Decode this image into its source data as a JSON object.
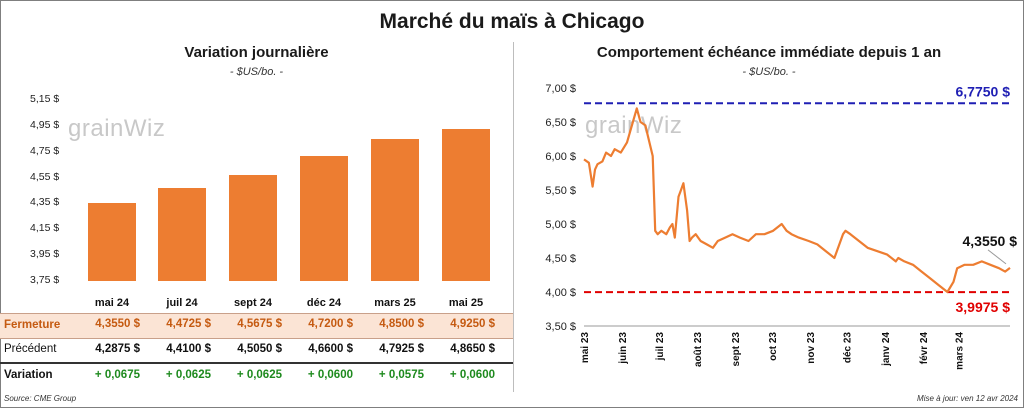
{
  "main_title": "Marché du maïs à Chicago",
  "left": {
    "title": "Variation  journalière",
    "unit": "- $US/bo. -",
    "watermark": "grainWiz",
    "y_ticks": [
      "5,15 $",
      "4,95 $",
      "4,75 $",
      "4,55 $",
      "4,35 $",
      "4,15 $",
      "3,95 $",
      "3,75 $"
    ],
    "table": {
      "rows": [
        {
          "label": "Fermeture",
          "values": [
            "4,3550  $",
            "4,4725  $",
            "4,5675  $",
            "4,7200  $",
            "4,8500  $",
            "4,9250  $"
          ]
        },
        {
          "label": "Précédent",
          "values": [
            "4,2875  $",
            "4,4100  $",
            "4,5050  $",
            "4,6600  $",
            "4,7925  $",
            "4,8650  $"
          ]
        },
        {
          "label": "Variation",
          "values": [
            "+ 0,0675",
            "+ 0,0625",
            "+ 0,0625",
            "+ 0,0600",
            "+ 0,0575",
            "+ 0,0600"
          ]
        }
      ]
    },
    "colors": {
      "bar": "#ed7d31",
      "close_row_bg": "#fbe4d5",
      "close_row_text": "#c55a11",
      "positive": "#1e8a1e"
    }
  },
  "right": {
    "title": "Comportement  échéance immédiate depuis 1 an",
    "unit": "- $US/bo. -",
    "watermark": "grainWiz",
    "y_ticks": [
      "7,00 $",
      "6,50 $",
      "6,00 $",
      "5,50 $",
      "5,00 $",
      "4,50 $",
      "4,00 $",
      "3,50 $"
    ],
    "x_ticks": [
      "mai 23",
      "juin 23",
      "juil 23",
      "août 23",
      "sept 23",
      "oct 23",
      "nov 23",
      "déc 23",
      "janv 24",
      "févr 24",
      "mars 24"
    ],
    "high_label": "6,7750 $",
    "low_label": "3,9975 $",
    "last_label": "4,3550 $",
    "colors": {
      "line": "#ed7d31",
      "high": "#1f1fb4",
      "low": "#e00000"
    }
  },
  "source": "Source: CME Group",
  "updated": "Mise à jour: ven 12 avr 2024",
  "chart_data": [
    {
      "type": "bar",
      "title": "Variation  journalière",
      "ylabel": "$US/bo.",
      "categories": [
        "mai 24",
        "juil 24",
        "sept 24",
        "déc 24",
        "mars 25",
        "mai 25"
      ],
      "values": [
        4.355,
        4.4725,
        4.5675,
        4.72,
        4.85,
        4.925
      ],
      "ylim": [
        3.75,
        5.15
      ],
      "grid": false
    },
    {
      "type": "line",
      "title": "Comportement  échéance immédiate depuis 1 an",
      "ylabel": "$US/bo.",
      "ylim": [
        3.5,
        7.0
      ],
      "reference_lines": [
        {
          "label": "6,7750 $",
          "value": 6.775
        },
        {
          "label": "3,9975 $",
          "value": 3.9975
        }
      ],
      "series": [
        {
          "x": [
            "2023-05-01",
            "2023-05-05",
            "2023-05-08",
            "2023-05-10",
            "2023-05-12",
            "2023-05-16",
            "2023-05-19",
            "2023-05-23",
            "2023-05-26",
            "2023-05-31",
            "2023-06-05",
            "2023-06-09",
            "2023-06-13",
            "2023-06-16",
            "2023-06-20",
            "2023-06-22",
            "2023-06-26",
            "2023-06-28",
            "2023-06-30",
            "2023-07-03",
            "2023-07-07",
            "2023-07-10",
            "2023-07-12",
            "2023-07-14",
            "2023-07-17",
            "2023-07-19",
            "2023-07-21",
            "2023-07-24",
            "2023-07-26",
            "2023-07-28",
            "2023-07-31",
            "2023-08-04",
            "2023-08-09",
            "2023-08-14",
            "2023-08-18",
            "2023-08-24",
            "2023-08-30",
            "2023-09-05",
            "2023-09-12",
            "2023-09-18",
            "2023-09-25",
            "2023-10-02",
            "2023-10-09",
            "2023-10-13",
            "2023-10-17",
            "2023-10-23",
            "2023-10-31",
            "2023-11-07",
            "2023-11-14",
            "2023-11-21",
            "2023-11-28",
            "2023-11-30",
            "2023-12-04",
            "2023-12-11",
            "2023-12-18",
            "2023-12-26",
            "2024-01-03",
            "2024-01-10",
            "2024-01-12",
            "2024-01-17",
            "2024-01-24",
            "2024-01-31",
            "2024-02-07",
            "2024-02-14",
            "2024-02-21",
            "2024-02-26",
            "2024-02-29",
            "2024-03-06",
            "2024-03-13",
            "2024-03-20",
            "2024-03-27",
            "2024-04-03",
            "2024-04-08",
            "2024-04-12"
          ],
          "values": [
            5.95,
            5.9,
            5.55,
            5.8,
            5.88,
            5.92,
            6.05,
            6.0,
            6.1,
            6.05,
            6.2,
            6.45,
            6.7,
            6.5,
            6.45,
            6.3,
            6.0,
            4.9,
            4.85,
            4.9,
            4.85,
            4.95,
            5.0,
            4.8,
            5.4,
            5.5,
            5.6,
            5.2,
            4.75,
            4.8,
            4.85,
            4.75,
            4.7,
            4.65,
            4.75,
            4.8,
            4.85,
            4.8,
            4.75,
            4.85,
            4.85,
            4.9,
            5.0,
            4.9,
            4.85,
            4.8,
            4.75,
            4.7,
            4.6,
            4.5,
            4.85,
            4.9,
            4.85,
            4.75,
            4.65,
            4.6,
            4.55,
            4.45,
            4.5,
            4.45,
            4.4,
            4.3,
            4.2,
            4.1,
            4.0,
            4.15,
            4.35,
            4.4,
            4.4,
            4.45,
            4.4,
            4.35,
            4.3,
            4.355
          ]
        }
      ]
    }
  ]
}
